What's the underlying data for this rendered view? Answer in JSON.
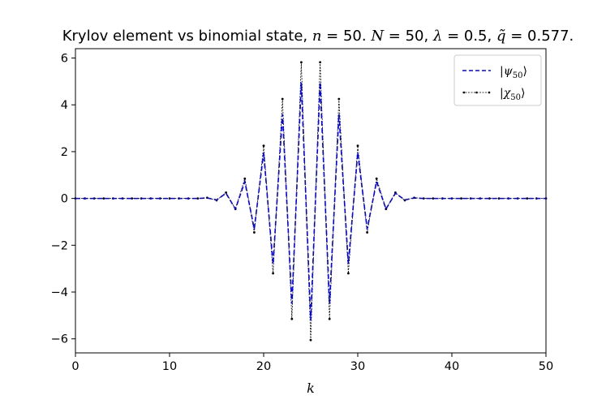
{
  "chart_data": {
    "type": "line",
    "title": "Krylov element vs binomial state, n = 50. N = 50, λ = 0.5, q̃ = 0.577.",
    "xlabel": "k",
    "ylabel": "",
    "xlim": [
      0,
      50
    ],
    "ylim": [
      -6.6,
      6.4
    ],
    "xticks": [
      0,
      10,
      20,
      30,
      40,
      50
    ],
    "yticks": [
      -6,
      -4,
      -2,
      0,
      2,
      4,
      6
    ],
    "xtick_labels": [
      "0",
      "10",
      "20",
      "30",
      "40",
      "50"
    ],
    "ytick_labels": [
      "−6",
      "−4",
      "−2",
      "0",
      "2",
      "4",
      "6"
    ],
    "grid": false,
    "legend_position": "top-right",
    "x": [
      0,
      1,
      2,
      3,
      4,
      5,
      6,
      7,
      8,
      9,
      10,
      11,
      12,
      13,
      14,
      15,
      16,
      17,
      18,
      19,
      20,
      21,
      22,
      23,
      24,
      25,
      26,
      27,
      28,
      29,
      30,
      31,
      32,
      33,
      34,
      35,
      36,
      37,
      38,
      39,
      40,
      41,
      42,
      43,
      44,
      45,
      46,
      47,
      48,
      49,
      50
    ],
    "series": [
      {
        "name": "|ψ₅₀⟩",
        "color": "#0000ff",
        "style": "dashed",
        "values": [
          0,
          0,
          0,
          0,
          0,
          0,
          0,
          0,
          0,
          0,
          0,
          0,
          0,
          0,
          0.02,
          -0.06,
          0.22,
          -0.45,
          0.72,
          -1.3,
          1.95,
          -2.8,
          3.6,
          -4.5,
          4.95,
          -5.2,
          4.95,
          -4.5,
          3.6,
          -2.8,
          1.95,
          -1.3,
          0.72,
          -0.45,
          0.22,
          -0.06,
          0.02,
          0,
          0,
          0,
          0,
          0,
          0,
          0,
          0,
          0,
          0,
          0,
          0,
          0,
          0
        ]
      },
      {
        "name": "|χ₅₀⟩",
        "color": "#000000",
        "style": "dotted-markers",
        "values": [
          0,
          0,
          0,
          0,
          0,
          0,
          0,
          0,
          0,
          0,
          0,
          0,
          0,
          0,
          0.03,
          -0.08,
          0.25,
          -0.45,
          0.85,
          -1.45,
          2.25,
          -3.2,
          4.25,
          -5.15,
          5.82,
          -6.05,
          5.82,
          -5.15,
          4.25,
          -3.2,
          2.25,
          -1.45,
          0.85,
          -0.45,
          0.25,
          -0.08,
          0.03,
          0,
          0,
          0,
          0,
          0,
          0,
          0,
          0,
          0,
          0,
          0,
          0,
          0,
          0
        ]
      }
    ]
  }
}
